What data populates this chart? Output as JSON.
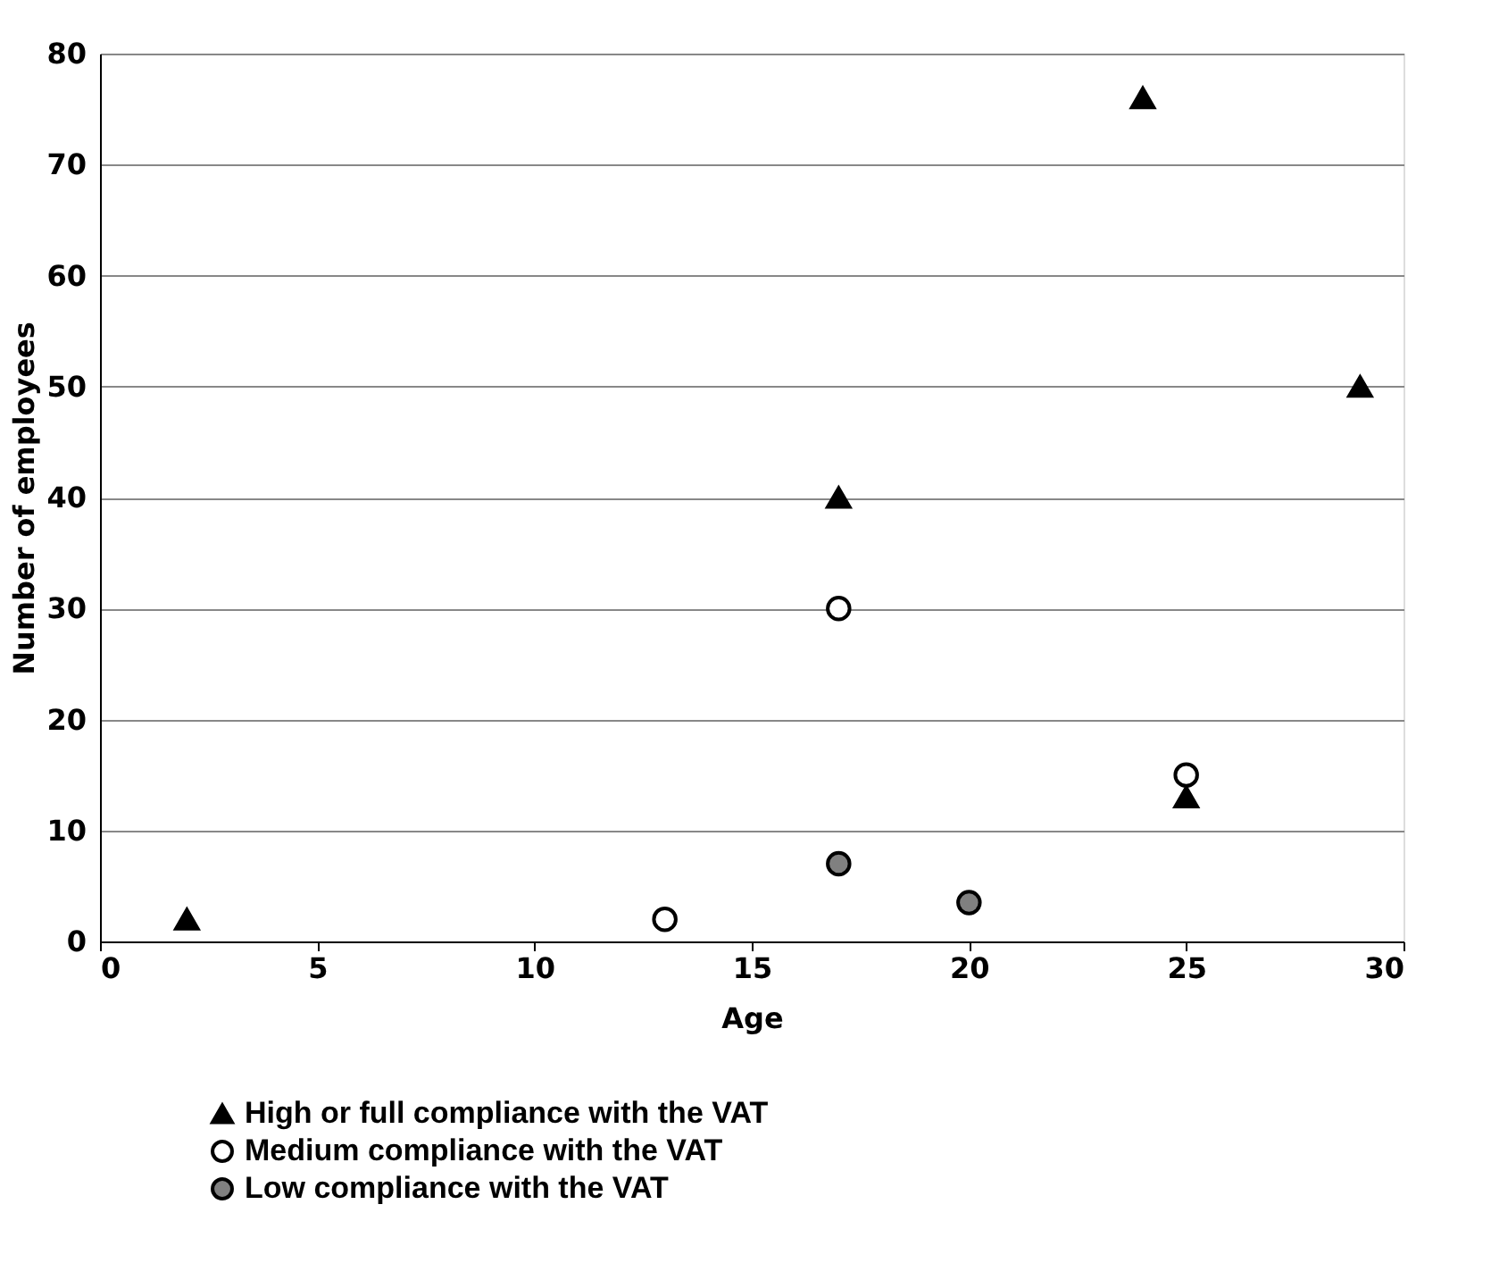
{
  "chart_data": {
    "type": "scatter",
    "xlabel": "Age",
    "ylabel": "Number of employees",
    "xlim": [
      0,
      30
    ],
    "xticks": [
      0,
      5,
      10,
      15,
      20,
      25,
      30
    ],
    "ylim": [
      0,
      80
    ],
    "yticks": [
      0,
      10,
      20,
      30,
      40,
      50,
      60,
      70,
      80
    ],
    "grid": "y",
    "legend": "bottom left",
    "series": [
      {
        "name": "High or full compliance with the VAT",
        "color": "#000000",
        "marker": "triangle",
        "x": [
          2,
          17,
          24,
          25,
          29
        ],
        "values": [
          2,
          40,
          76,
          13,
          50
        ]
      },
      {
        "name": "Medium compliance with the VAT",
        "color": "#ffffff",
        "marker": "circle",
        "x": [
          13,
          17,
          25
        ],
        "values": [
          2,
          30,
          15
        ]
      },
      {
        "name": "Low compliance with the VAT",
        "color": "#808080",
        "marker": "circle",
        "x": [
          17,
          20
        ],
        "values": [
          7,
          3.5
        ]
      }
    ]
  }
}
